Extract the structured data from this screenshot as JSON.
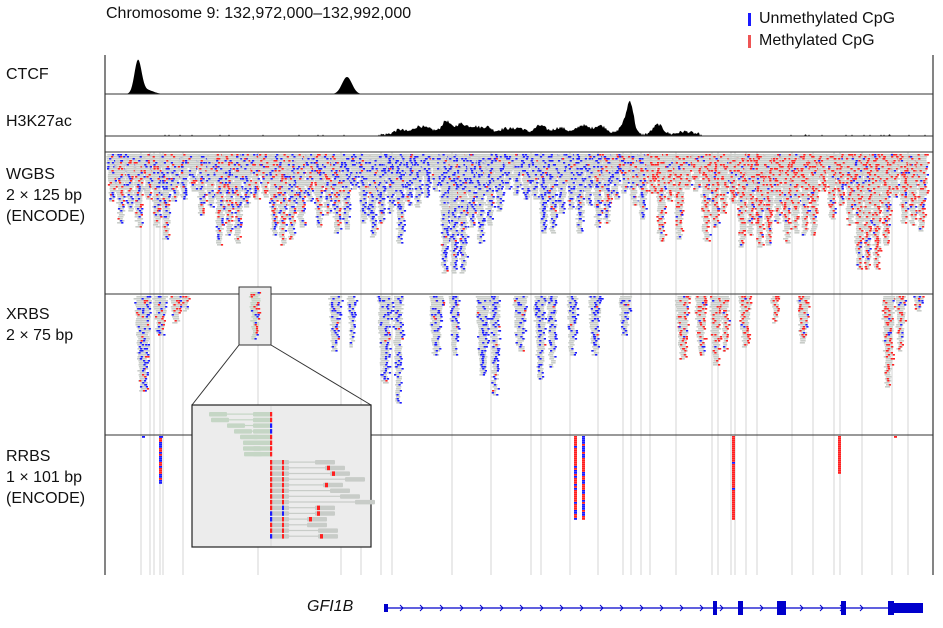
{
  "header": {
    "title": "Chromosome 9: 132,972,000–132,992,000"
  },
  "legend": {
    "items": [
      {
        "label": "Unmethylated CpG",
        "color": "#1a1aff"
      },
      {
        "label": "Methylated CpG",
        "color": "#ee4444"
      }
    ]
  },
  "tracks": {
    "ctcf": {
      "label": "CTCF"
    },
    "h3k27ac": {
      "label": "H3K27ac"
    },
    "wgbs": {
      "lines": [
        "WGBS",
        "2 × 125 bp",
        "(ENCODE)"
      ]
    },
    "xrbs": {
      "lines": [
        "XRBS",
        "2 × 75 bp"
      ]
    },
    "rrbs": {
      "lines": [
        "RRBS",
        "1 × 101 bp",
        "(ENCODE)"
      ]
    }
  },
  "gene": {
    "name": "GFI1B",
    "color": "#0000cc"
  },
  "colors": {
    "unmethylated": "#1a1aff",
    "methylated": "#ff2020",
    "read": "#c8ccc8",
    "read_green": "#c5d6c5",
    "guide": "#d6d6d6",
    "signal": "#000000"
  }
}
